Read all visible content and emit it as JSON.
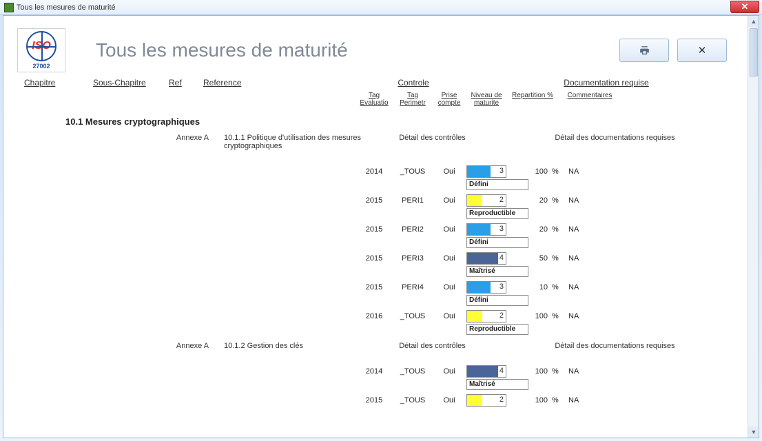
{
  "window": {
    "title": "Tous les mesures de maturité"
  },
  "logo": {
    "text": "ISO",
    "num": "27002"
  },
  "page_title": "Tous les mesures de maturité",
  "columns": {
    "chapitre": "Chapitre",
    "souschap": "Sous-Chapitre",
    "ref": "Ref",
    "reference": "Reference",
    "controle": "Controle",
    "docreq": "Documentation requise"
  },
  "subcolumns": {
    "tageval": "Tag Evaluatio",
    "tagperi": "Tag Perimetr",
    "prise": "Prise compte",
    "niveau": "Niveau de maturite",
    "repart": "Repartition %",
    "comm": "Commentaires"
  },
  "section_title": "10.1 Mesures cryptographiques",
  "detail_controles": "Détail des contrôles",
  "detail_docs": "Détail des documentations requises",
  "refs": [
    {
      "annexe": "Annexe A",
      "text": "10.1.1 Politique d'utilisation des mesures cryptographiques"
    },
    {
      "annexe": "Annexe A",
      "text": "10.1.2 Gestion des clés"
    }
  ],
  "level_colors": {
    "blue": "#2a9ee6",
    "yellow": "#ffff33",
    "darkblue": "#4a6597"
  },
  "group1": [
    {
      "eval": "2014",
      "peri": "_TOUS",
      "prise": "Oui",
      "level": 3,
      "color": "blue",
      "label": "Défini",
      "fill_pct": 60,
      "repart": "100",
      "comm": "NA"
    },
    {
      "eval": "2015",
      "peri": "PERI1",
      "prise": "Oui",
      "level": 2,
      "color": "yellow",
      "label": "Reproductible",
      "fill_pct": 40,
      "repart": "20",
      "comm": "NA"
    },
    {
      "eval": "2015",
      "peri": "PERI2",
      "prise": "Oui",
      "level": 3,
      "color": "blue",
      "label": "Défini",
      "fill_pct": 60,
      "repart": "20",
      "comm": "NA"
    },
    {
      "eval": "2015",
      "peri": "PERI3",
      "prise": "Oui",
      "level": 4,
      "color": "darkblue",
      "label": "Maîtrisé",
      "fill_pct": 80,
      "repart": "50",
      "comm": "NA"
    },
    {
      "eval": "2015",
      "peri": "PERI4",
      "prise": "Oui",
      "level": 3,
      "color": "blue",
      "label": "Défini",
      "fill_pct": 60,
      "repart": "10",
      "comm": "NA"
    },
    {
      "eval": "2016",
      "peri": "_TOUS",
      "prise": "Oui",
      "level": 2,
      "color": "yellow",
      "label": "Reproductible",
      "fill_pct": 40,
      "repart": "100",
      "comm": "NA"
    }
  ],
  "group2": [
    {
      "eval": "2014",
      "peri": "_TOUS",
      "prise": "Oui",
      "level": 4,
      "color": "darkblue",
      "label": "Maîtrisé",
      "fill_pct": 80,
      "repart": "100",
      "comm": "NA"
    },
    {
      "eval": "2015",
      "peri": "_TOUS",
      "prise": "Oui",
      "level": 2,
      "color": "yellow",
      "label": "",
      "fill_pct": 40,
      "repart": "100",
      "comm": "NA"
    }
  ],
  "pct_sign": "%"
}
